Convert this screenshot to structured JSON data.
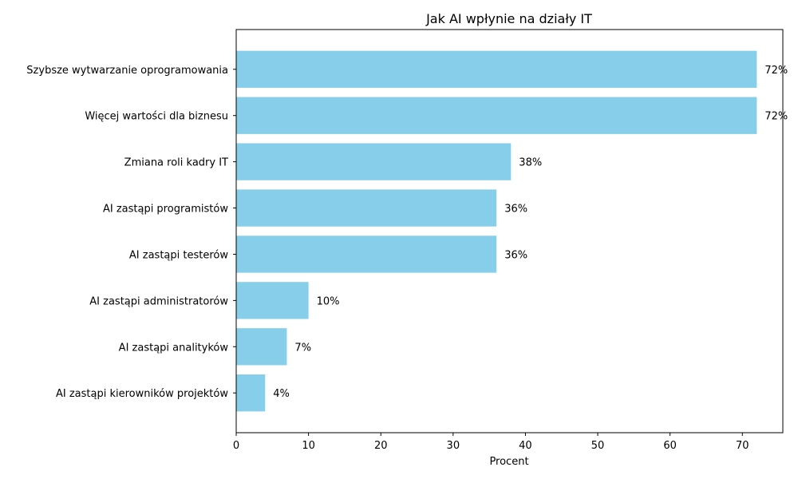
{
  "chart_data": {
    "type": "bar",
    "orientation": "horizontal",
    "title": "Jak AI wpłynie na działy IT",
    "xlabel": "Procent",
    "ylabel": "",
    "categories": [
      "Szybsze wytwarzanie oprogramowania",
      "Więcej wartości dla biznesu",
      "Zmiana roli kadry IT",
      "AI zastąpi programistów",
      "AI zastąpi testerów",
      "AI zastąpi administratorów",
      "AI zastąpi analityków",
      "AI zastąpi kierowników projektów"
    ],
    "values": [
      72,
      72,
      38,
      36,
      36,
      10,
      7,
      4
    ],
    "value_labels": [
      "72%",
      "72%",
      "38%",
      "36%",
      "36%",
      "10%",
      "7%",
      "4%"
    ],
    "xlim": [
      0,
      75.6
    ],
    "xticks": [
      0,
      10,
      20,
      30,
      40,
      50,
      60,
      70
    ],
    "grid": false,
    "legend": "none",
    "colors": {
      "bar": "#87CEEB",
      "axis": "#000000"
    }
  }
}
